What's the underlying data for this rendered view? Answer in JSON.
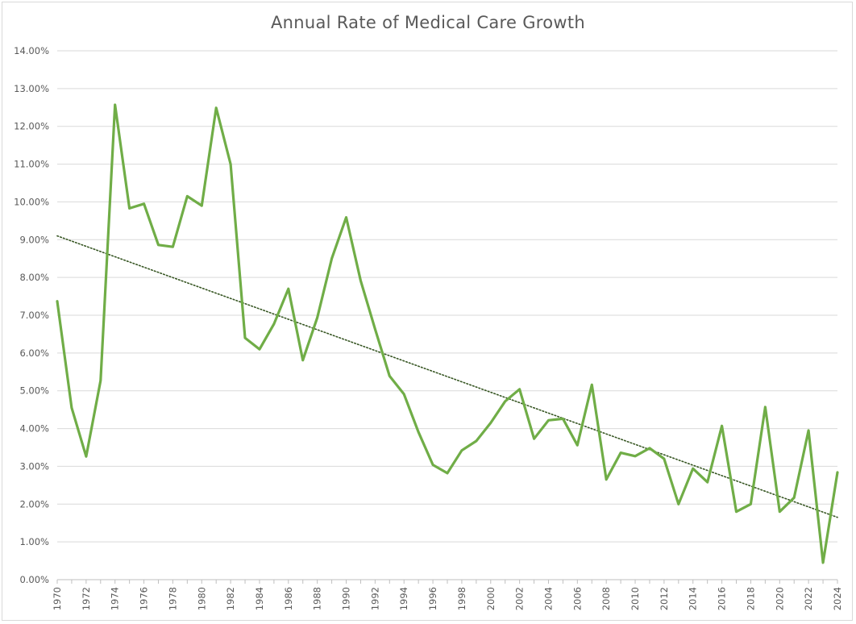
{
  "chart_data": {
    "type": "line",
    "title": "Annual Rate of Medical Care Growth",
    "xlabel": "",
    "ylabel": "",
    "ylim": [
      0,
      14
    ],
    "y_ticks": [
      "0.00%",
      "1.00%",
      "2.00%",
      "3.00%",
      "4.00%",
      "5.00%",
      "6.00%",
      "7.00%",
      "8.00%",
      "9.00%",
      "10.00%",
      "11.00%",
      "12.00%",
      "13.00%",
      "14.00%"
    ],
    "x": [
      1970,
      1971,
      1972,
      1973,
      1974,
      1975,
      1976,
      1977,
      1978,
      1979,
      1980,
      1981,
      1982,
      1983,
      1984,
      1985,
      1986,
      1987,
      1988,
      1989,
      1990,
      1991,
      1992,
      1993,
      1994,
      1995,
      1996,
      1997,
      1998,
      1999,
      2000,
      2001,
      2002,
      2003,
      2004,
      2005,
      2006,
      2007,
      2008,
      2009,
      2010,
      2011,
      2012,
      2013,
      2014,
      2015,
      2016,
      2017,
      2018,
      2019,
      2020,
      2021,
      2022,
      2023,
      2024
    ],
    "x_tick_labels": [
      "1970",
      "1972",
      "1974",
      "1976",
      "1978",
      "1980",
      "1982",
      "1984",
      "1986",
      "1988",
      "1990",
      "1992",
      "1994",
      "1996",
      "1998",
      "2000",
      "2002",
      "2004",
      "2006",
      "2008",
      "2010",
      "2012",
      "2014",
      "2016",
      "2018",
      "2020",
      "2022",
      "2024"
    ],
    "grid": true,
    "series": [
      {
        "color": "#70ad47",
        "values": [
          7.37,
          4.55,
          3.26,
          5.27,
          12.57,
          9.83,
          9.95,
          8.86,
          8.81,
          10.15,
          9.9,
          12.49,
          11,
          6.4,
          6.1,
          6.77,
          7.7,
          5.81,
          6.94,
          8.5,
          9.59,
          7.92,
          6.63,
          5.39,
          4.91,
          3.91,
          3.04,
          2.82,
          3.42,
          3.67,
          4.15,
          4.72,
          5.04,
          3.73,
          4.22,
          4.26,
          3.56,
          5.16,
          2.65,
          3.36,
          3.27,
          3.48,
          3.2,
          2.0,
          2.94,
          2.58,
          4.07,
          1.8,
          2.0,
          4.57,
          1.8,
          2.17,
          3.95,
          0.45,
          2.84
        ],
        "style": "solid"
      },
      {
        "name": "",
        "color": "#375623",
        "type": "linear trendline",
        "start": 9.1,
        "end": 1.65,
        "style": "dotted"
      }
    ]
  }
}
